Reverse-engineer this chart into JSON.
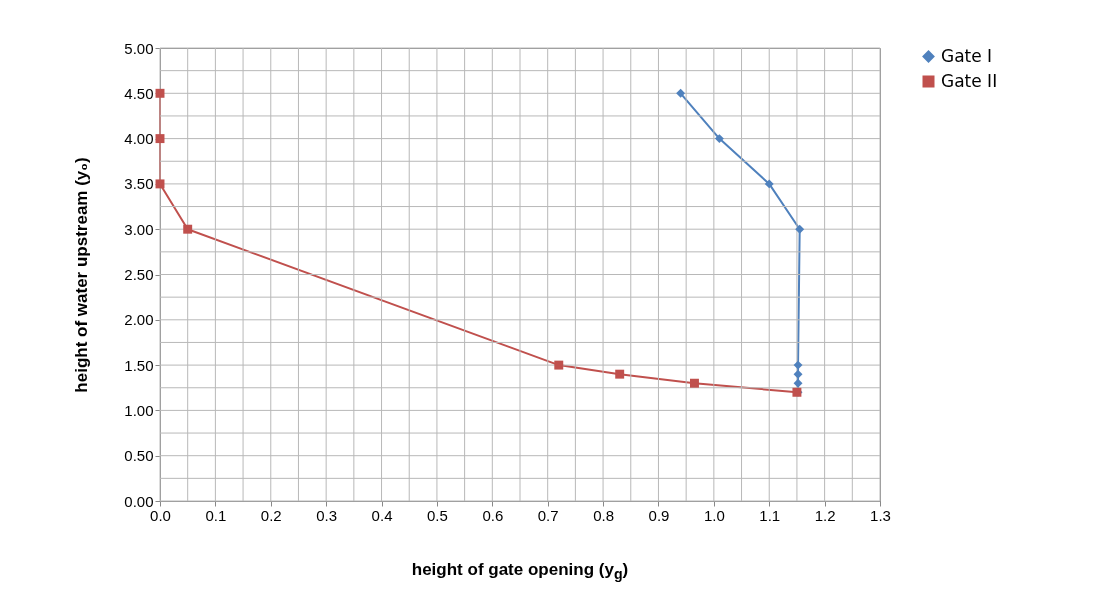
{
  "chart_data": {
    "type": "line",
    "xlabel": "height of  gate opening (y$_{g}$)",
    "ylabel": "height of water upstream (y₀)",
    "series": [
      {
        "name": "Gate I",
        "color": "#4f81bd",
        "marker": "diamond",
        "x": [
          0.94,
          1.01,
          1.1,
          1.155,
          1.152,
          1.152,
          1.152,
          1.152
        ],
        "values": [
          4.5,
          4.0,
          3.5,
          3.0,
          1.5,
          1.4,
          1.3,
          1.2
        ]
      },
      {
        "name": "Gate II",
        "color": "#c0504d",
        "marker": "square",
        "x": [
          0,
          0,
          0,
          0.05,
          0.72,
          0.83,
          0.965,
          1.15
        ],
        "values": [
          4.5,
          4.0,
          3.5,
          3.0,
          1.5,
          1.4,
          1.3,
          1.2
        ]
      }
    ],
    "xlim": [
      0,
      1.3
    ],
    "xticks": [
      {
        "value": 0,
        "label": "0.0"
      },
      {
        "value": 0.05,
        "label": null
      },
      {
        "value": 0.1,
        "label": "0.1"
      },
      {
        "value": 0.15,
        "label": null
      },
      {
        "value": 0.2,
        "label": "0.2"
      },
      {
        "value": 0.25,
        "label": null
      },
      {
        "value": 0.3,
        "label": "0.3"
      },
      {
        "value": 0.35,
        "label": null
      },
      {
        "value": 0.4,
        "label": "0.4"
      },
      {
        "value": 0.45,
        "label": null
      },
      {
        "value": 0.5,
        "label": "0.5"
      },
      {
        "value": 0.55,
        "label": null
      },
      {
        "value": 0.6,
        "label": "0.6"
      },
      {
        "value": 0.65,
        "label": null
      },
      {
        "value": 0.7,
        "label": "0.7"
      },
      {
        "value": 0.75,
        "label": null
      },
      {
        "value": 0.8,
        "label": "0.8"
      },
      {
        "value": 0.85,
        "label": null
      },
      {
        "value": 0.9,
        "label": "0.9"
      },
      {
        "value": 0.95,
        "label": null
      },
      {
        "value": 1,
        "label": "1.0"
      },
      {
        "value": 1.05,
        "label": null
      },
      {
        "value": 1.1,
        "label": "1.1"
      },
      {
        "value": 1.15,
        "label": null
      },
      {
        "value": 1.2,
        "label": "1.2"
      },
      {
        "value": 1.25,
        "label": null
      },
      {
        "value": 1.3,
        "label": "1.3"
      }
    ],
    "ylim": [
      0,
      5
    ],
    "yticks": [
      {
        "value": 0,
        "label": "0.00"
      },
      {
        "value": 0.25,
        "label": null
      },
      {
        "value": 0.5,
        "label": "0.50"
      },
      {
        "value": 0.75,
        "label": null
      },
      {
        "value": 1,
        "label": "1.00"
      },
      {
        "value": 1.25,
        "label": null
      },
      {
        "value": 1.5,
        "label": "1.50"
      },
      {
        "value": 1.75,
        "label": null
      },
      {
        "value": 2,
        "label": "2.00"
      },
      {
        "value": 2.25,
        "label": null
      },
      {
        "value": 2.5,
        "label": "2.50"
      },
      {
        "value": 2.75,
        "label": null
      },
      {
        "value": 3,
        "label": "3.00"
      },
      {
        "value": 3.25,
        "label": null
      },
      {
        "value": 3.5,
        "label": "3.50"
      },
      {
        "value": 3.75,
        "label": null
      },
      {
        "value": 4,
        "label": "4.00"
      },
      {
        "value": 4.25,
        "label": null
      },
      {
        "value": 4.5,
        "label": "4.50"
      },
      {
        "value": 4.75,
        "label": null
      },
      {
        "value": 5,
        "label": "5.00"
      }
    ],
    "grid": true,
    "legend": "right",
    "line_style": "solid"
  }
}
